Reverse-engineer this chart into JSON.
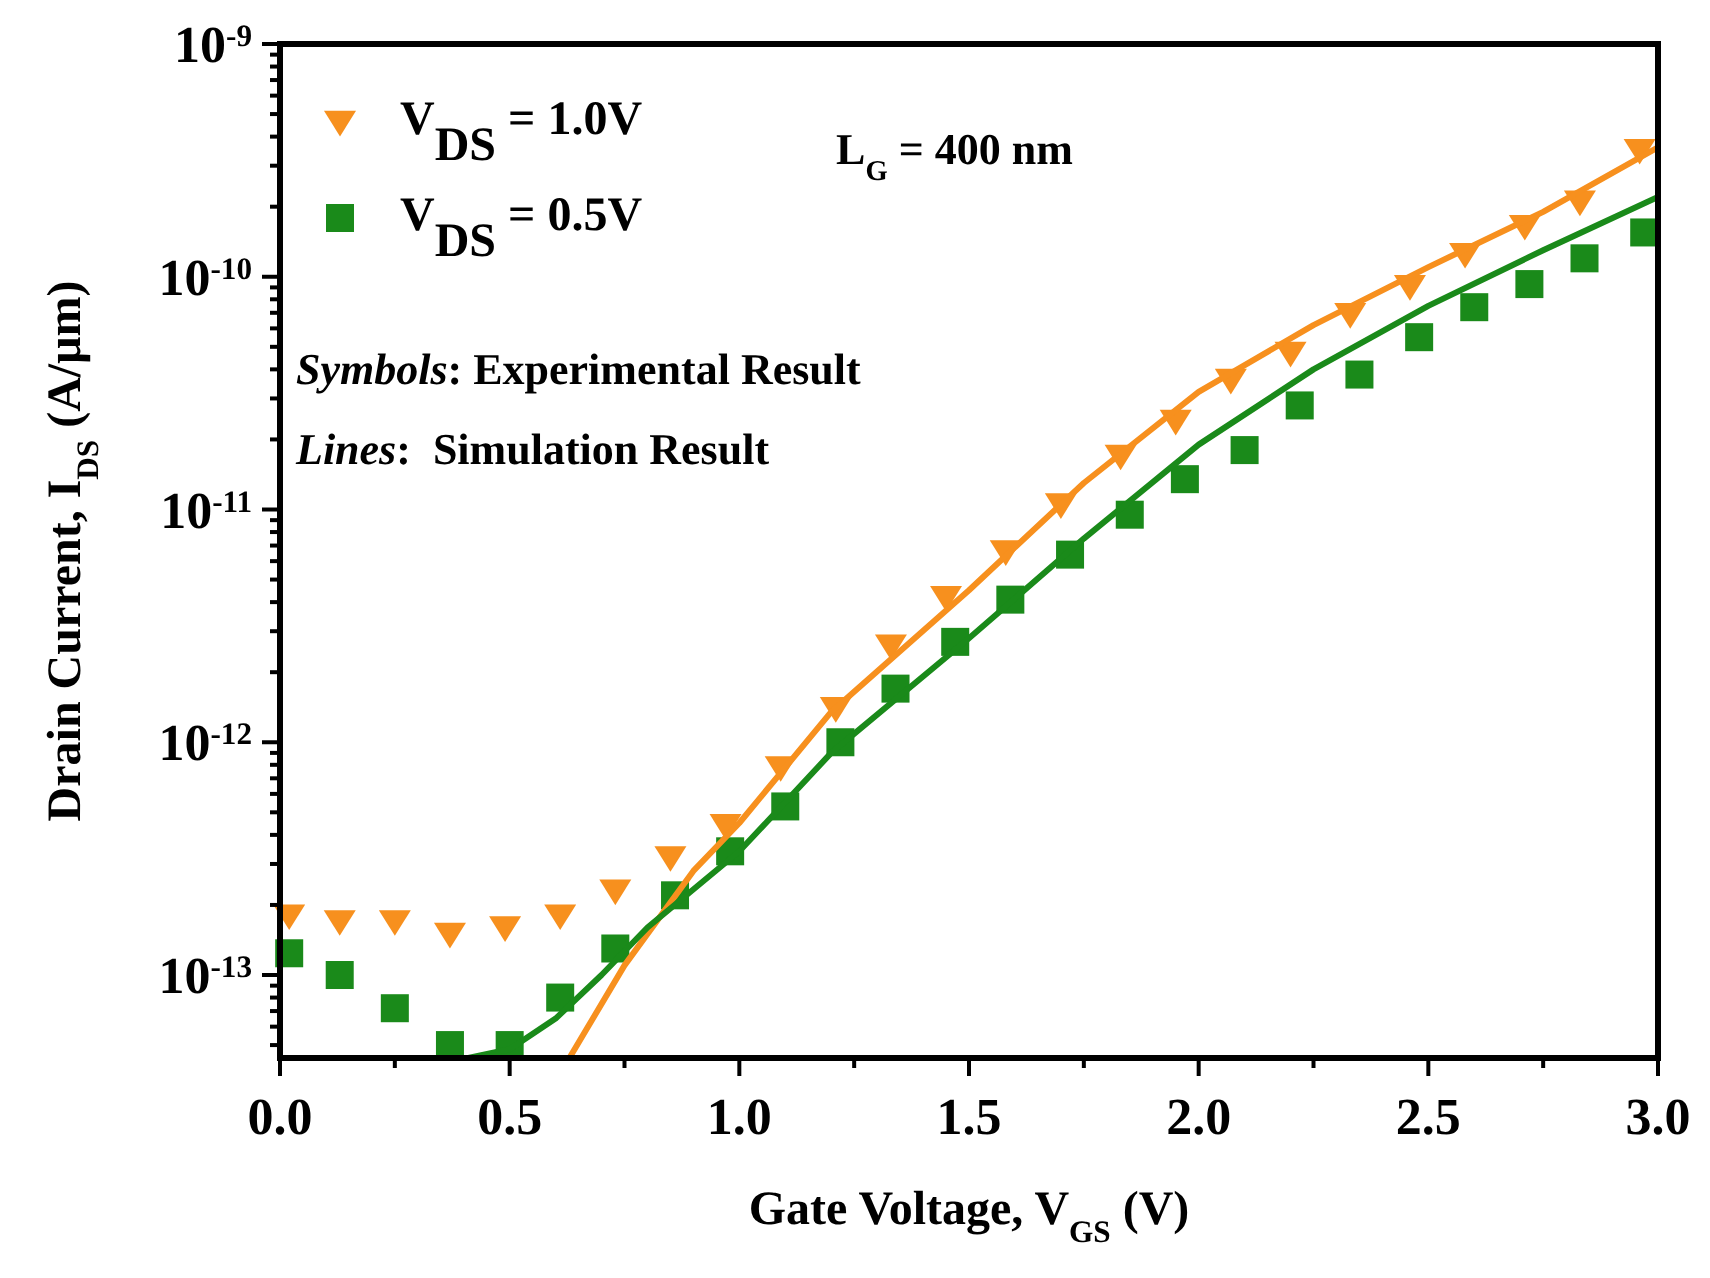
{
  "chart_data": {
    "type": "scatter",
    "xlabel": "Gate Voltage, V$_{GS}$ (V)",
    "ylabel": "Drain Current, I$_{DS}$ (A/μm)",
    "log": "y",
    "legend": "top left",
    "xlim": [
      0,
      3
    ],
    "ylim": [
      4.4e-14,
      1e-09
    ],
    "xticks": [
      {
        "value": 0,
        "label": "0.0"
      },
      {
        "value": 0.25,
        "label": null
      },
      {
        "value": 0.5,
        "label": "0.5"
      },
      {
        "value": 0.75,
        "label": null
      },
      {
        "value": 1,
        "label": "1.0"
      },
      {
        "value": 1.25,
        "label": null
      },
      {
        "value": 1.5,
        "label": "1.5"
      },
      {
        "value": 1.75,
        "label": null
      },
      {
        "value": 2,
        "label": "2.0"
      },
      {
        "value": 2.25,
        "label": null
      },
      {
        "value": 2.5,
        "label": "2.5"
      },
      {
        "value": 2.75,
        "label": null
      },
      {
        "value": 3,
        "label": "3.0"
      }
    ],
    "yticks": [
      {
        "value": 5e-14,
        "label": null
      },
      {
        "value": 6e-14,
        "label": null
      },
      {
        "value": 7e-14,
        "label": null
      },
      {
        "value": 8e-14,
        "label": null
      },
      {
        "value": 9e-14,
        "label": null
      },
      {
        "value": 1e-13,
        "label": "10$^{-13}$"
      },
      {
        "value": 2e-13,
        "label": null
      },
      {
        "value": 3e-13,
        "label": null
      },
      {
        "value": 4e-13,
        "label": null
      },
      {
        "value": 5e-13,
        "label": null
      },
      {
        "value": 6e-13,
        "label": null
      },
      {
        "value": 7e-13,
        "label": null
      },
      {
        "value": 8e-13,
        "label": null
      },
      {
        "value": 9e-13,
        "label": null
      },
      {
        "value": 1e-12,
        "label": "10$^{-12}$"
      },
      {
        "value": 2e-12,
        "label": null
      },
      {
        "value": 3e-12,
        "label": null
      },
      {
        "value": 4e-12,
        "label": null
      },
      {
        "value": 5e-12,
        "label": null
      },
      {
        "value": 6e-12,
        "label": null
      },
      {
        "value": 7e-12,
        "label": null
      },
      {
        "value": 8e-12,
        "label": null
      },
      {
        "value": 9e-12,
        "label": null
      },
      {
        "value": 1e-11,
        "label": "10$^{-11}$"
      },
      {
        "value": 2e-11,
        "label": null
      },
      {
        "value": 3e-11,
        "label": null
      },
      {
        "value": 4e-11,
        "label": null
      },
      {
        "value": 5e-11,
        "label": null
      },
      {
        "value": 6e-11,
        "label": null
      },
      {
        "value": 7e-11,
        "label": null
      },
      {
        "value": 8e-11,
        "label": null
      },
      {
        "value": 9e-11,
        "label": null
      },
      {
        "value": 1e-10,
        "label": "10$^{-10}$"
      },
      {
        "value": 2e-10,
        "label": null
      },
      {
        "value": 3e-10,
        "label": null
      },
      {
        "value": 4e-10,
        "label": null
      },
      {
        "value": 5e-10,
        "label": null
      },
      {
        "value": 6e-10,
        "label": null
      },
      {
        "value": 7e-10,
        "label": null
      },
      {
        "value": 8e-10,
        "label": null
      },
      {
        "value": 9e-10,
        "label": null
      },
      {
        "value": 1e-09,
        "label": "10$^{-9}$"
      }
    ],
    "series": [
      {
        "name": "V$_{DS}$ = 1.0V",
        "marker": "triangle",
        "color": "#f7901e",
        "x": [
          0.02,
          0.13,
          0.25,
          0.37,
          0.49,
          0.61,
          0.73,
          0.85,
          0.97,
          1.09,
          1.21,
          1.33,
          1.45,
          1.58,
          1.7,
          1.83,
          1.95,
          2.07,
          2.2,
          2.33,
          2.46,
          2.58,
          2.71,
          2.83,
          2.96
        ],
        "values": [
          1.8e-13,
          1.7e-13,
          1.7e-13,
          1.5e-13,
          1.6e-13,
          1.8e-13,
          2.3e-13,
          3.2e-13,
          4.4e-13,
          7.8e-13,
          1.4e-12,
          2.6e-12,
          4.2e-12,
          6.6e-12,
          1.05e-11,
          1.7e-11,
          2.4e-11,
          3.6e-11,
          4.7e-11,
          6.9e-11,
          9.1e-11,
          1.25e-10,
          1.65e-10,
          2.1e-10,
          3.5e-10
        ]
      },
      {
        "name": "V$_{DS}$ = 0.5V",
        "marker": "square",
        "color": "#1a8a1a",
        "x": [
          0.02,
          0.13,
          0.25,
          0.37,
          0.5,
          0.61,
          0.73,
          0.86,
          0.98,
          1.1,
          1.22,
          1.34,
          1.47,
          1.59,
          1.72,
          1.85,
          1.97,
          2.1,
          2.22,
          2.35,
          2.48,
          2.6,
          2.72,
          2.84,
          2.97
        ],
        "values": [
          1.24e-13,
          1e-13,
          7.2e-14,
          5e-14,
          5e-14,
          8e-14,
          1.3e-13,
          2.2e-13,
          3.4e-13,
          5.3e-13,
          1e-12,
          1.7e-12,
          2.7e-12,
          4.1e-12,
          6.4e-12,
          9.5e-12,
          1.35e-11,
          1.8e-11,
          2.8e-11,
          3.8e-11,
          5.5e-11,
          7.4e-11,
          9.3e-11,
          1.2e-10,
          1.55e-10
        ]
      },
      {
        "type": "line",
        "marker": "none",
        "color": "#f7901e",
        "x": [
          0.63,
          0.75,
          0.9,
          1,
          1.2,
          1.5,
          1.75,
          2,
          2.25,
          2.5,
          2.75,
          3
        ],
        "values": [
          4.4e-14,
          1.1e-13,
          2.8e-13,
          4.5e-13,
          1.35e-12,
          4.5e-12,
          1.3e-11,
          3.2e-11,
          6.2e-11,
          1.1e-10,
          1.9e-10,
          3.6e-10
        ]
      },
      {
        "type": "line",
        "marker": "none",
        "color": "#1a8a1a",
        "x": [
          0.41,
          0.5,
          0.6,
          0.7,
          0.8,
          1,
          1.2,
          1.5,
          1.75,
          2,
          2.25,
          2.5,
          2.75,
          3
        ],
        "values": [
          4.4e-14,
          4.8e-14,
          6.5e-14,
          1e-13,
          1.6e-13,
          3.4e-13,
          9e-13,
          2.8e-12,
          7.5e-12,
          1.9e-11,
          4e-11,
          7.5e-11,
          1.3e-10,
          2.2e-10
        ]
      }
    ],
    "annotations": [
      "L$_{G}$ = 400 nm",
      "Symbols: Experimental Result",
      "Lines:  Simulation Result"
    ]
  }
}
